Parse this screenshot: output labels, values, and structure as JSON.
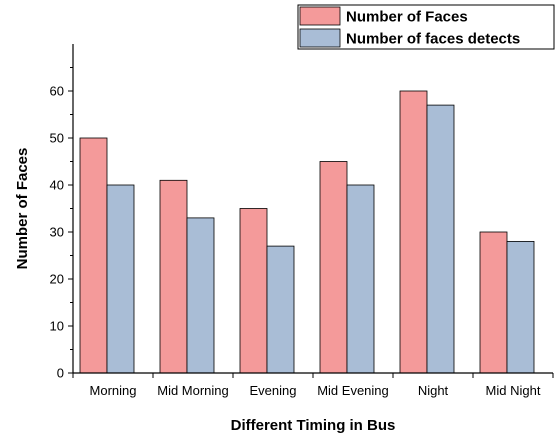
{
  "chart_data": {
    "type": "bar",
    "title": "",
    "xlabel": "Different Timing in Bus",
    "ylabel": "Number of Faces",
    "categories": [
      "Morning",
      "Mid Morning",
      "Evening",
      "Mid Evening",
      "Night",
      "Mid Night"
    ],
    "series": [
      {
        "name": "Number of Faces",
        "color": "#f49a9a",
        "values": [
          50,
          41,
          35,
          45,
          60,
          30
        ]
      },
      {
        "name": "Number of faces detects",
        "color": "#a9bdd6",
        "values": [
          40,
          33,
          27,
          40,
          57,
          28
        ]
      }
    ],
    "ylim": [
      0,
      70
    ],
    "yticks": [
      "0",
      "10",
      "20",
      "30",
      "40",
      "50",
      "60"
    ],
    "grid": false,
    "legend_position": "top-right"
  }
}
